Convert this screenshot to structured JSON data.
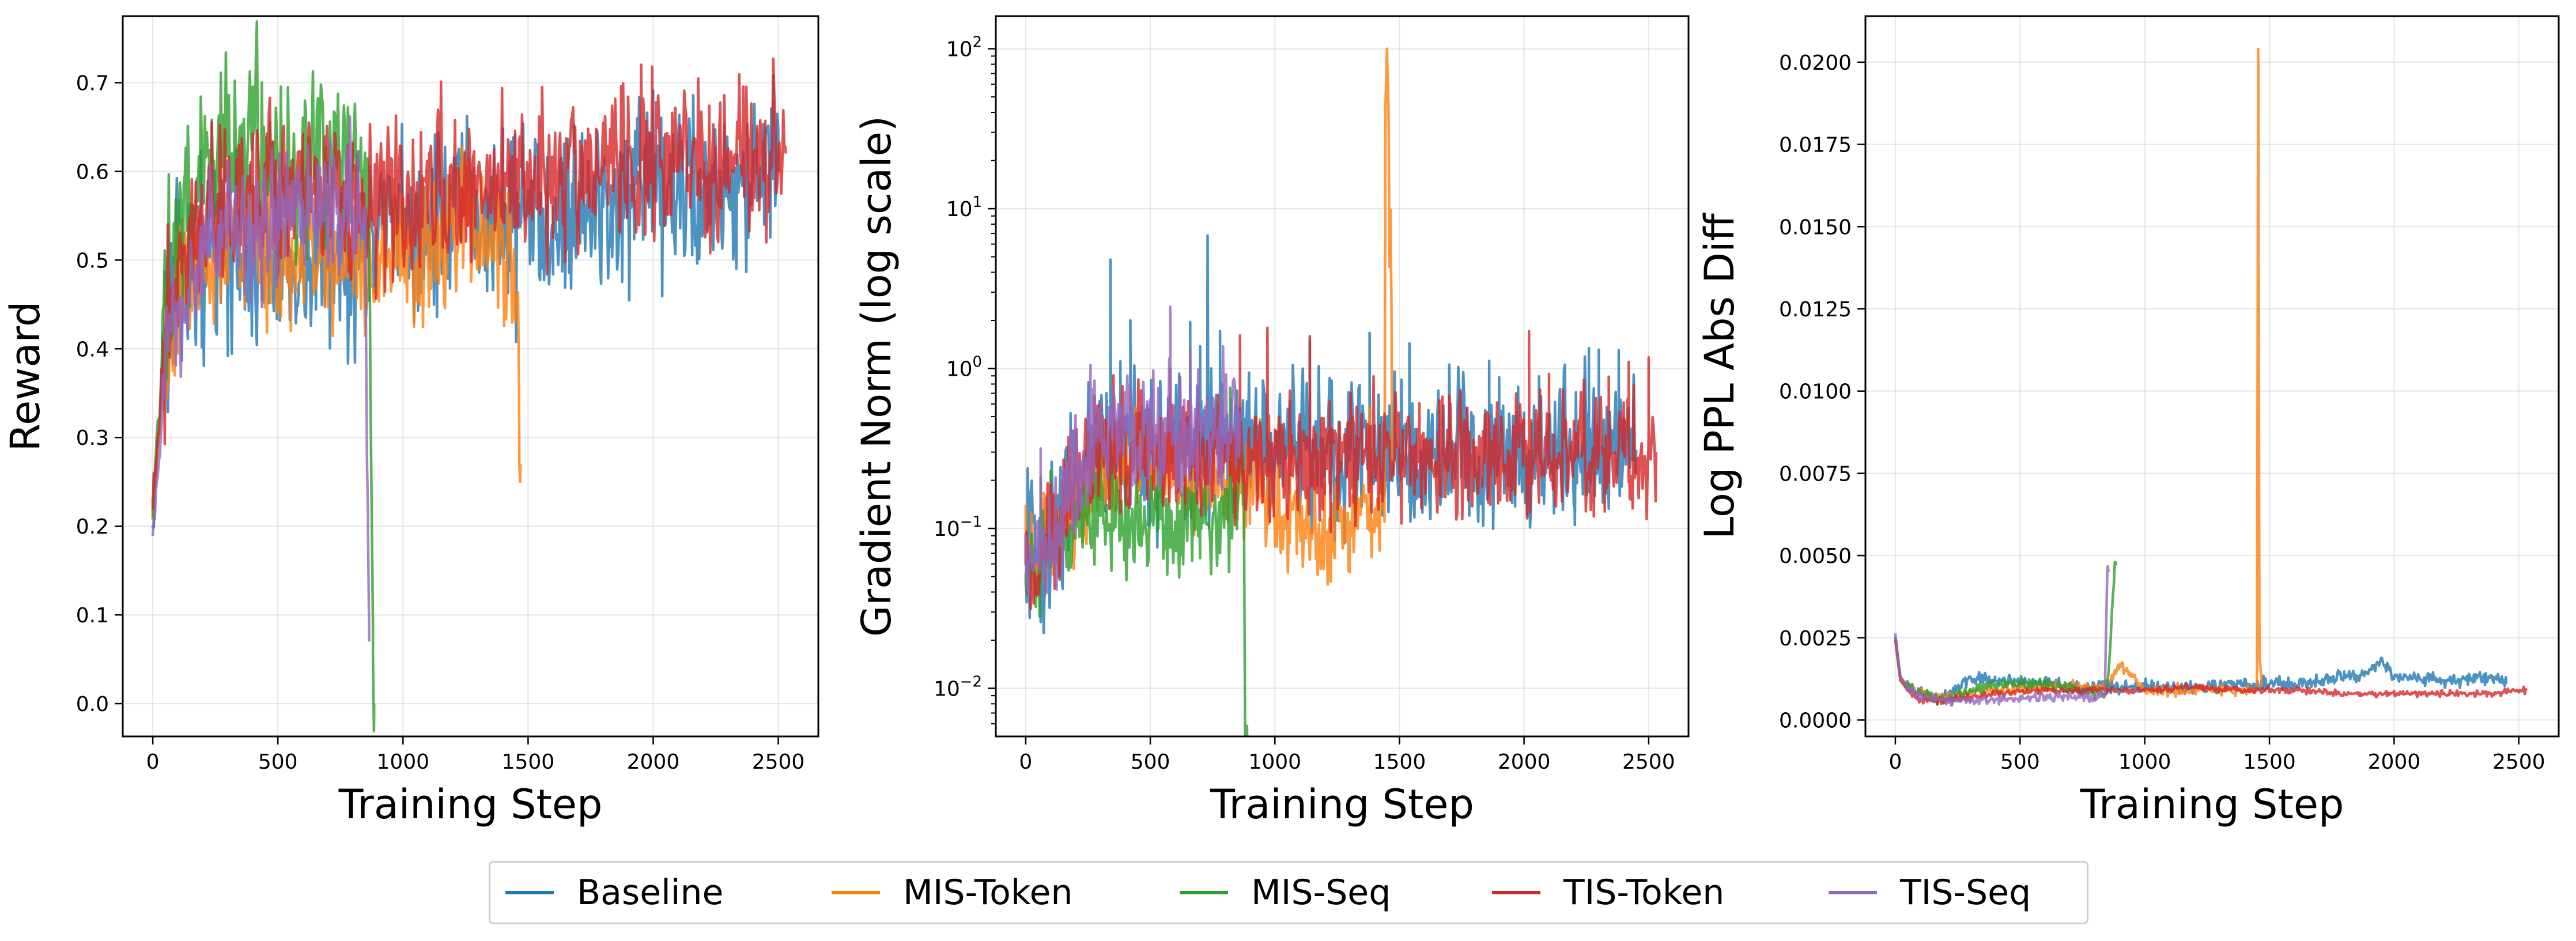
{
  "colors": {
    "Baseline": "#1f77b4",
    "MIS-Token": "#ff7f0e",
    "MIS-Seq": "#2ca02c",
    "TIS-Token": "#d62728",
    "TIS-Seq": "#9467bd"
  },
  "legend": {
    "placement": "bottom-center",
    "items": [
      "Baseline",
      "MIS-Token",
      "MIS-Seq",
      "TIS-Token",
      "TIS-Seq"
    ]
  },
  "chart_data": [
    {
      "type": "line",
      "xlabel": "Training Step",
      "ylabel": "Reward",
      "xlim": [
        -120,
        2660
      ],
      "ylim": [
        -0.037,
        0.775
      ],
      "xticks": [
        0,
        500,
        1000,
        1500,
        2000,
        2500
      ],
      "yticks": [
        0.0,
        0.1,
        0.2,
        0.3,
        0.4,
        0.5,
        0.6,
        0.7
      ],
      "ytick_labels": [
        "0.0",
        "0.1",
        "0.2",
        "0.3",
        "0.4",
        "0.5",
        "0.6",
        "0.7"
      ],
      "grid": true,
      "series": [
        {
          "name": "Baseline",
          "x": [
            0,
            50,
            100,
            200,
            300,
            400,
            500,
            600,
            700,
            800,
            900,
            1000,
            1200,
            1400,
            1600,
            1800,
            2000,
            2200,
            2400,
            2500
          ],
          "y": [
            0.2,
            0.42,
            0.47,
            0.5,
            0.52,
            0.5,
            0.5,
            0.51,
            0.5,
            0.51,
            0.52,
            0.53,
            0.55,
            0.55,
            0.56,
            0.56,
            0.57,
            0.58,
            0.59,
            0.6
          ],
          "noise": 0.05
        },
        {
          "name": "MIS-Token",
          "x": [
            0,
            50,
            100,
            200,
            300,
            400,
            500,
            600,
            700,
            800,
            900,
            1000,
            1100,
            1200,
            1300,
            1400,
            1460,
            1465,
            1470
          ],
          "y": [
            0.22,
            0.4,
            0.46,
            0.5,
            0.53,
            0.52,
            0.5,
            0.5,
            0.51,
            0.5,
            0.49,
            0.5,
            0.52,
            0.52,
            0.53,
            0.52,
            0.46,
            0.27,
            0.27
          ],
          "noise": 0.04
        },
        {
          "name": "MIS-Seq",
          "x": [
            0,
            50,
            100,
            200,
            300,
            400,
            500,
            600,
            700,
            800,
            860,
            870,
            880,
            885
          ],
          "y": [
            0.22,
            0.45,
            0.54,
            0.6,
            0.63,
            0.64,
            0.62,
            0.6,
            0.61,
            0.6,
            0.58,
            0.35,
            0.05,
            0.0
          ],
          "noise": 0.05
        },
        {
          "name": "TIS-Token",
          "x": [
            0,
            50,
            100,
            200,
            300,
            400,
            500,
            600,
            800,
            1000,
            1200,
            1400,
            1600,
            1800,
            2000,
            2200,
            2400,
            2530
          ],
          "y": [
            0.22,
            0.42,
            0.5,
            0.55,
            0.57,
            0.56,
            0.56,
            0.56,
            0.57,
            0.57,
            0.58,
            0.58,
            0.6,
            0.6,
            0.61,
            0.61,
            0.62,
            0.62
          ],
          "noise": 0.045
        },
        {
          "name": "TIS-Seq",
          "x": [
            0,
            50,
            100,
            200,
            300,
            400,
            500,
            600,
            700,
            800,
            850,
            860,
            865
          ],
          "y": [
            0.19,
            0.38,
            0.44,
            0.5,
            0.53,
            0.54,
            0.55,
            0.55,
            0.56,
            0.56,
            0.55,
            0.2,
            0.07
          ],
          "noise": 0.04
        }
      ]
    },
    {
      "type": "line",
      "xlabel": "Training Step",
      "ylabel": "Gradient Norm (log scale)",
      "yscale": "log",
      "xlim": [
        -120,
        2660
      ],
      "ylim": [
        0.005,
        160
      ],
      "xticks": [
        0,
        500,
        1000,
        1500,
        2000,
        2500
      ],
      "yticks": [
        0.01,
        0.1,
        1,
        10,
        100
      ],
      "ytick_labels": [
        "10⁻²",
        "10⁻¹",
        "10⁰",
        "10¹",
        "10²"
      ],
      "grid": true,
      "series": [
        {
          "name": "Baseline",
          "x": [
            0,
            50,
            100,
            200,
            300,
            400,
            500,
            600,
            800,
            1000,
            1200,
            1400,
            1600,
            1800,
            2000,
            2200,
            2400,
            2450
          ],
          "y": [
            0.08,
            0.07,
            0.09,
            0.15,
            0.3,
            0.35,
            0.33,
            0.33,
            0.32,
            0.3,
            0.3,
            0.3,
            0.3,
            0.3,
            0.31,
            0.31,
            0.32,
            0.31
          ],
          "noise": 0.18,
          "spikes": [
            {
              "x": 340,
              "y": 4.8
            },
            {
              "x": 730,
              "y": 6.8
            },
            {
              "x": 420,
              "y": 2.0
            }
          ]
        },
        {
          "name": "MIS-Token",
          "x": [
            0,
            50,
            100,
            200,
            300,
            400,
            500,
            600,
            700,
            800,
            900,
            1000,
            1100,
            1200,
            1300,
            1400,
            1440,
            1450,
            1460,
            1470
          ],
          "y": [
            0.07,
            0.06,
            0.08,
            0.14,
            0.22,
            0.27,
            0.25,
            0.22,
            0.2,
            0.2,
            0.22,
            0.11,
            0.1,
            0.1,
            0.11,
            0.13,
            0.2,
            100,
            10,
            0.25
          ],
          "noise": 0.12
        },
        {
          "name": "MIS-Seq",
          "x": [
            0,
            50,
            100,
            200,
            300,
            400,
            500,
            600,
            700,
            800,
            850,
            870,
            880,
            890
          ],
          "y": [
            0.045,
            0.05,
            0.07,
            0.12,
            0.12,
            0.11,
            0.12,
            0.11,
            0.11,
            0.12,
            0.14,
            0.3,
            0.004,
            0.004
          ],
          "noise": 0.12
        },
        {
          "name": "TIS-Token",
          "x": [
            0,
            50,
            100,
            200,
            300,
            400,
            500,
            600,
            800,
            1000,
            1200,
            1400,
            1600,
            1800,
            2000,
            2200,
            2400,
            2530
          ],
          "y": [
            0.06,
            0.05,
            0.08,
            0.2,
            0.28,
            0.3,
            0.3,
            0.3,
            0.3,
            0.28,
            0.28,
            0.28,
            0.28,
            0.28,
            0.3,
            0.3,
            0.3,
            0.3
          ],
          "noise": 0.15,
          "spikes": [
            {
              "x": 580,
              "y": 1.0
            },
            {
              "x": 970,
              "y": 1.8
            }
          ]
        },
        {
          "name": "TIS-Seq",
          "x": [
            0,
            50,
            100,
            200,
            300,
            400,
            500,
            600,
            700,
            800,
            860
          ],
          "y": [
            0.09,
            0.06,
            0.08,
            0.2,
            0.35,
            0.4,
            0.4,
            0.42,
            0.45,
            0.45,
            0.45
          ],
          "noise": 0.15
        }
      ]
    },
    {
      "type": "line",
      "xlabel": "Training Step",
      "ylabel": "Log PPL Abs Diff",
      "xlim": [
        -120,
        2660
      ],
      "ylim": [
        -0.0005,
        0.0214
      ],
      "xticks": [
        0,
        500,
        1000,
        1500,
        2000,
        2500
      ],
      "yticks": [
        0.0,
        0.0025,
        0.005,
        0.0075,
        0.01,
        0.0125,
        0.015,
        0.0175,
        0.02
      ],
      "ytick_labels": [
        "0.0000",
        "0.0025",
        "0.0050",
        "0.0075",
        "0.0100",
        "0.0125",
        "0.0150",
        "0.0175",
        "0.0200"
      ],
      "grid": true,
      "series": [
        {
          "name": "Baseline",
          "x": [
            0,
            20,
            50,
            100,
            200,
            300,
            400,
            600,
            800,
            1000,
            1200,
            1400,
            1600,
            1800,
            1900,
            1950,
            2000,
            2200,
            2400,
            2450
          ],
          "y": [
            0.0025,
            0.0013,
            0.001,
            0.0008,
            0.0007,
            0.0013,
            0.0012,
            0.0011,
            0.001,
            0.001,
            0.001,
            0.0011,
            0.0011,
            0.0013,
            0.0015,
            0.0018,
            0.0013,
            0.0012,
            0.0013,
            0.0011
          ],
          "noise": 0.0001
        },
        {
          "name": "MIS-Token",
          "x": [
            0,
            20,
            50,
            100,
            200,
            300,
            400,
            600,
            800,
            850,
            900,
            1000,
            1200,
            1400,
            1450,
            1455,
            1460,
            1470
          ],
          "y": [
            0.0025,
            0.0013,
            0.001,
            0.0008,
            0.0007,
            0.0008,
            0.0009,
            0.001,
            0.001,
            0.0011,
            0.0017,
            0.0009,
            0.0009,
            0.0009,
            0.0009,
            0.0204,
            0.002,
            0.001
          ],
          "noise": 8e-05
        },
        {
          "name": "MIS-Seq",
          "x": [
            0,
            20,
            50,
            100,
            200,
            300,
            400,
            600,
            800,
            850,
            860,
            880,
            885
          ],
          "y": [
            0.0025,
            0.0013,
            0.001,
            0.0008,
            0.0006,
            0.0009,
            0.0011,
            0.0011,
            0.0008,
            0.0009,
            0.002,
            0.0048,
            0.0047
          ],
          "noise": 8e-05
        },
        {
          "name": "TIS-Token",
          "x": [
            0,
            20,
            50,
            100,
            200,
            300,
            400,
            600,
            800,
            1000,
            1200,
            1400,
            1600,
            1800,
            2000,
            2200,
            2400,
            2530
          ],
          "y": [
            0.0024,
            0.0012,
            0.0009,
            0.0006,
            0.0006,
            0.0007,
            0.0008,
            0.0009,
            0.0009,
            0.0009,
            0.001,
            0.0009,
            0.0009,
            0.0008,
            0.0008,
            0.0008,
            0.0008,
            0.0009
          ],
          "noise": 5e-05
        },
        {
          "name": "TIS-Seq",
          "x": [
            0,
            20,
            50,
            100,
            200,
            300,
            400,
            600,
            800,
            840,
            850,
            855
          ],
          "y": [
            0.0026,
            0.0013,
            0.001,
            0.0007,
            0.0006,
            0.0006,
            0.0006,
            0.0007,
            0.0007,
            0.0008,
            0.0046,
            0.0045
          ],
          "noise": 6e-05
        }
      ]
    }
  ]
}
